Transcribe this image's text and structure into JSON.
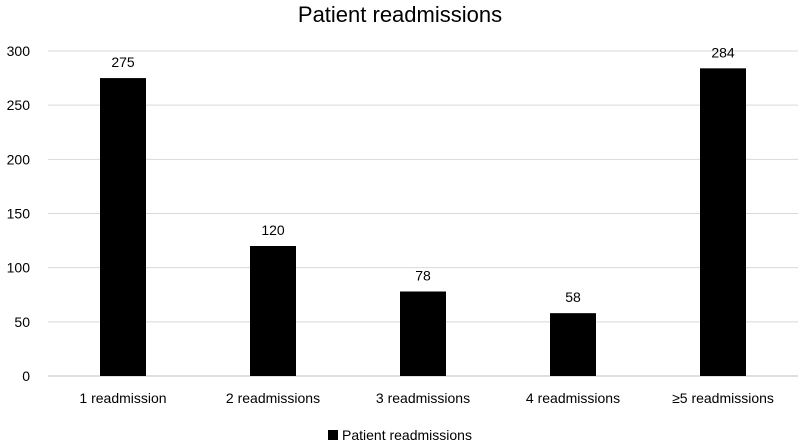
{
  "chart_data": {
    "type": "bar",
    "title": "Patient readmissions",
    "categories": [
      "1 readmission",
      "2 readmissions",
      "3 readmissions",
      "4 readmissions",
      "≥5 readmissions"
    ],
    "series": [
      {
        "name": "Patient readmissions",
        "values": [
          275,
          120,
          78,
          58,
          284
        ],
        "color": "#000000"
      }
    ],
    "ylim": [
      0,
      300
    ],
    "yticks": [
      "0",
      "50",
      "100",
      "150",
      "200",
      "250",
      "300"
    ],
    "grid": true,
    "legend": "bottom"
  }
}
